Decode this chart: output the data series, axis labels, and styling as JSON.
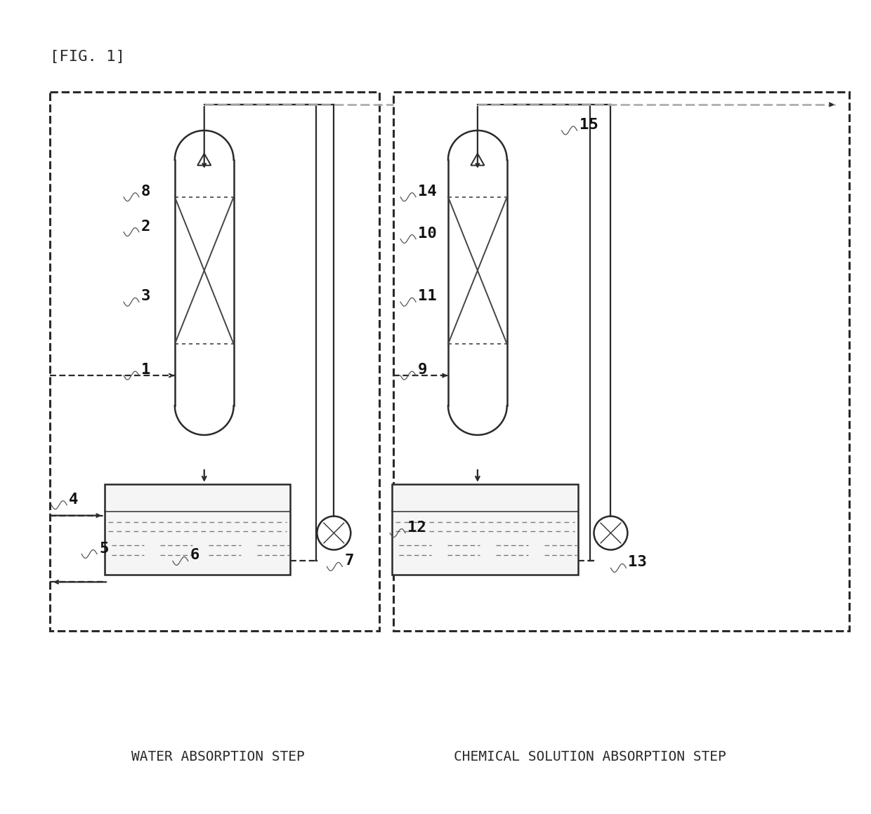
{
  "title": "[FIG. 1]",
  "bg_color": "#ffffff",
  "lc": "#2a2a2a",
  "dc": "#2a2a2a",
  "gray": "#888888",
  "subtitle_left": "WATER ABSORPTION STEP",
  "subtitle_right": "CHEMICAL SOLUTION ABSORPTION STEP",
  "fig_width": 12.4,
  "fig_height": 11.6
}
